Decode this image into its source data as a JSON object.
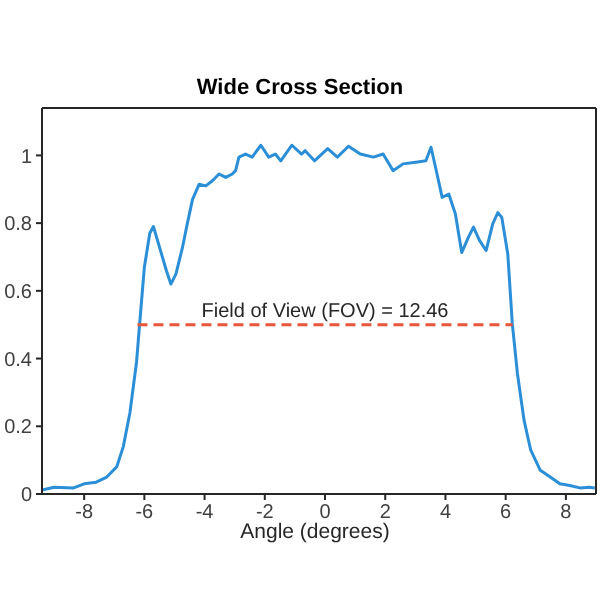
{
  "chart_data": {
    "type": "line",
    "title": "Wide Cross Section",
    "xlabel": "Angle (degrees)",
    "xlim": [
      -9.4,
      9
    ],
    "ylim": [
      0,
      1.14
    ],
    "xticks": [
      -8,
      -6,
      -4,
      -2,
      0,
      2,
      4,
      6,
      8
    ],
    "yticks": [
      0,
      0.2,
      0.4,
      0.6,
      0.8,
      1
    ],
    "grid": false,
    "legend": false,
    "annotations": [
      {
        "text": "Field of View (FOV) = 12.46",
        "x": 0,
        "y": 0.5
      }
    ],
    "series": [
      {
        "color": "#2b8fd8",
        "line_style": "solid",
        "x": [
          -9.4,
          -9.0,
          -8.35,
          -8.0,
          -7.6,
          -7.25,
          -6.92,
          -6.7,
          -6.48,
          -6.26,
          -6.15,
          -6.0,
          -5.82,
          -5.7,
          -5.5,
          -5.27,
          -5.12,
          -4.95,
          -4.73,
          -4.57,
          -4.4,
          -4.18,
          -3.96,
          -3.74,
          -3.52,
          -3.3,
          -3.08,
          -2.97,
          -2.86,
          -2.64,
          -2.42,
          -2.13,
          -1.87,
          -1.65,
          -1.47,
          -1.1,
          -0.78,
          -0.66,
          -0.35,
          0.09,
          0.41,
          0.78,
          1.17,
          1.61,
          1.93,
          2.26,
          2.59,
          3.02,
          3.35,
          3.52,
          3.67,
          3.89,
          4.11,
          4.33,
          4.54,
          4.76,
          4.93,
          5.13,
          5.35,
          5.57,
          5.74,
          5.87,
          6.07,
          6.22,
          6.39,
          6.61,
          6.83,
          7.15,
          7.48,
          7.8,
          8.13,
          8.46,
          8.78,
          8.96
        ],
        "values": [
          0.012,
          0.02,
          0.018,
          0.03,
          0.035,
          0.05,
          0.08,
          0.14,
          0.24,
          0.39,
          0.51,
          0.67,
          0.77,
          0.79,
          0.73,
          0.66,
          0.62,
          0.65,
          0.73,
          0.8,
          0.87,
          0.915,
          0.91,
          0.925,
          0.945,
          0.935,
          0.945,
          0.955,
          0.995,
          1.004,
          0.995,
          1.03,
          0.995,
          1.004,
          0.984,
          1.03,
          1.004,
          1.014,
          0.984,
          1.02,
          0.995,
          1.027,
          1.004,
          0.995,
          1.004,
          0.955,
          0.975,
          0.98,
          0.984,
          1.024,
          0.965,
          0.876,
          0.886,
          0.827,
          0.713,
          0.758,
          0.788,
          0.749,
          0.719,
          0.798,
          0.831,
          0.817,
          0.709,
          0.503,
          0.356,
          0.218,
          0.13,
          0.07,
          0.05,
          0.03,
          0.025,
          0.018,
          0.02,
          0.018
        ]
      },
      {
        "color": "#e8563a",
        "line_style": "dashed",
        "x": [
          -6.23,
          6.23
        ],
        "values": [
          0.5,
          0.5
        ]
      }
    ]
  }
}
